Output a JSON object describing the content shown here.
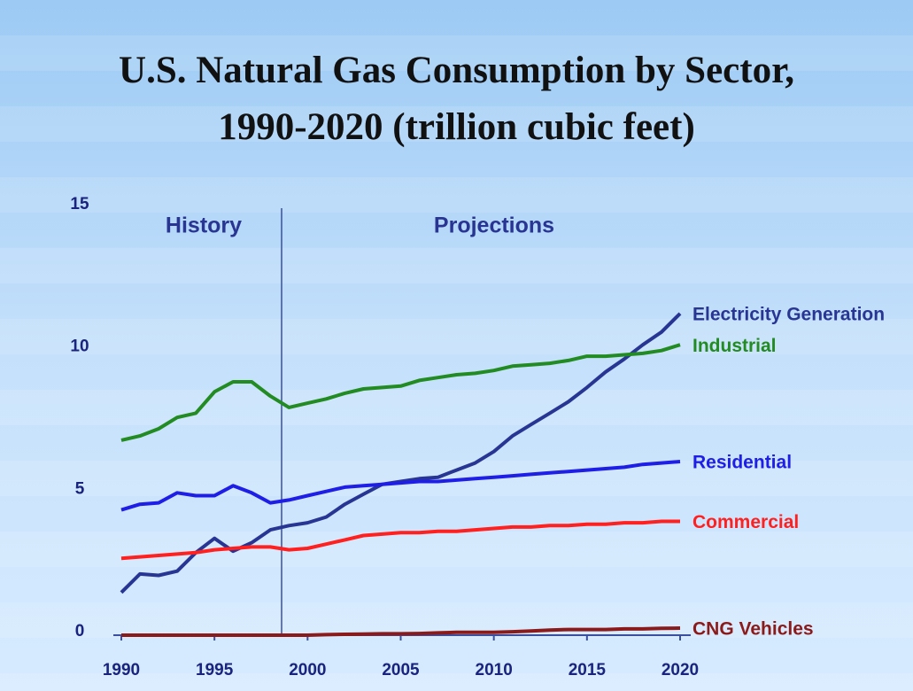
{
  "chart_data": {
    "type": "line",
    "title": "U.S. Natural Gas Consumption by Sector,\n1990-2020 (trillion cubic feet)",
    "annotations": [
      "History",
      "Projections"
    ],
    "x": [
      1990,
      1991,
      1992,
      1993,
      1994,
      1995,
      1996,
      1997,
      1998,
      1999,
      2000,
      2001,
      2002,
      2003,
      2004,
      2005,
      2006,
      2007,
      2008,
      2009,
      2010,
      2011,
      2012,
      2013,
      2014,
      2015,
      2016,
      2017,
      2018,
      2019,
      2020
    ],
    "series": [
      {
        "name": "Electricity Generation",
        "color": "#283593",
        "values": [
          1.5,
          2.15,
          2.1,
          2.25,
          2.9,
          3.4,
          2.95,
          3.25,
          3.7,
          3.85,
          3.95,
          4.15,
          4.6,
          4.95,
          5.3,
          5.4,
          5.5,
          5.55,
          5.8,
          6.05,
          6.45,
          7.0,
          7.4,
          7.8,
          8.2,
          8.7,
          9.25,
          9.7,
          10.2,
          10.65,
          11.3
        ]
      },
      {
        "name": "Industrial",
        "color": "#228b22",
        "values": [
          6.85,
          7.0,
          7.25,
          7.65,
          7.8,
          8.55,
          8.9,
          8.9,
          8.4,
          8.0,
          8.15,
          8.3,
          8.5,
          8.65,
          8.7,
          8.75,
          8.95,
          9.05,
          9.15,
          9.2,
          9.3,
          9.45,
          9.5,
          9.55,
          9.65,
          9.8,
          9.8,
          9.85,
          9.9,
          10.0,
          10.2
        ]
      },
      {
        "name": "Residential",
        "color": "#1e1ee6",
        "values": [
          4.4,
          4.6,
          4.65,
          5.0,
          4.9,
          4.9,
          5.25,
          5.0,
          4.65,
          4.75,
          4.9,
          5.05,
          5.2,
          5.25,
          5.3,
          5.35,
          5.4,
          5.4,
          5.45,
          5.5,
          5.55,
          5.6,
          5.65,
          5.7,
          5.75,
          5.8,
          5.85,
          5.9,
          6.0,
          6.05,
          6.1
        ]
      },
      {
        "name": "Commercial",
        "color": "#ff2020",
        "values": [
          2.7,
          2.75,
          2.8,
          2.85,
          2.9,
          3.0,
          3.05,
          3.1,
          3.1,
          3.0,
          3.05,
          3.2,
          3.35,
          3.5,
          3.55,
          3.6,
          3.6,
          3.65,
          3.65,
          3.7,
          3.75,
          3.8,
          3.8,
          3.85,
          3.85,
          3.9,
          3.9,
          3.95,
          3.95,
          4.0,
          4.0
        ]
      },
      {
        "name": "CNG Vehicles",
        "color": "#8b1a1a",
        "values": [
          0,
          0,
          0,
          0,
          0,
          0,
          0,
          0,
          0,
          0,
          0,
          0.02,
          0.03,
          0.04,
          0.05,
          0.05,
          0.06,
          0.08,
          0.1,
          0.1,
          0.1,
          0.12,
          0.15,
          0.18,
          0.2,
          0.2,
          0.2,
          0.22,
          0.22,
          0.24,
          0.25
        ]
      }
    ],
    "xlim": [
      1990,
      2020
    ],
    "xticks": [
      1990,
      1995,
      2000,
      2005,
      2010,
      2015,
      2020
    ],
    "ylim": [
      0,
      15
    ],
    "yticks": [
      0,
      5,
      10,
      15
    ]
  }
}
